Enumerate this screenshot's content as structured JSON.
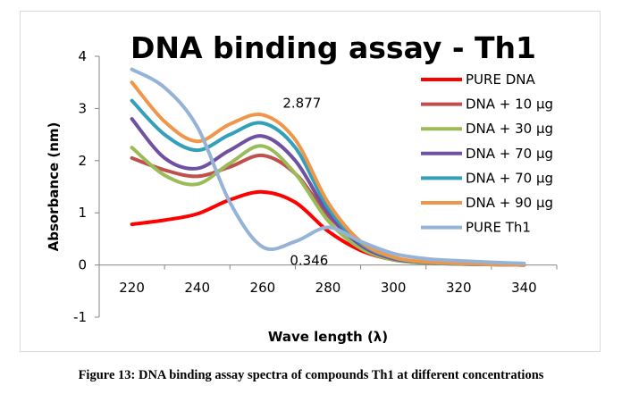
{
  "caption": "Figure 13: DNA binding assay spectra of compounds Th1 at different concentrations",
  "chart_data": {
    "type": "line",
    "title": "DNA binding assay - Th1",
    "xlabel": "Wave length (λ)",
    "ylabel": "Absorbance (nm)",
    "xlim": [
      210,
      350
    ],
    "ylim": [
      -1,
      4
    ],
    "xticks": [
      220,
      240,
      260,
      280,
      300,
      320,
      340
    ],
    "yticks": [
      -1,
      0,
      1,
      2,
      3,
      4
    ],
    "grid": false,
    "legend_position": "right",
    "x": [
      220,
      230,
      240,
      250,
      260,
      270,
      280,
      290,
      300,
      310,
      320,
      330,
      340
    ],
    "series": [
      {
        "name": "PURE DNA",
        "color": "#ff0000",
        "values": [
          0.78,
          0.86,
          0.98,
          1.25,
          1.4,
          1.2,
          0.65,
          0.28,
          0.1,
          0.04,
          0.02,
          0.01,
          0.0
        ]
      },
      {
        "name": "DNA + 10 µg",
        "color": "#c0504d",
        "values": [
          2.05,
          1.82,
          1.7,
          1.88,
          2.1,
          1.75,
          0.95,
          0.4,
          0.13,
          0.05,
          0.02,
          0.01,
          0.0
        ]
      },
      {
        "name": "DNA + 30 µg",
        "color": "#9bbb59",
        "values": [
          2.25,
          1.72,
          1.55,
          1.95,
          2.28,
          1.75,
          0.85,
          0.32,
          0.1,
          0.04,
          0.02,
          0.01,
          0.0
        ]
      },
      {
        "name": "DNA + 70 µg",
        "color": "#7050a0",
        "values": [
          2.8,
          2.05,
          1.85,
          2.2,
          2.47,
          2.0,
          1.0,
          0.38,
          0.12,
          0.05,
          0.02,
          0.01,
          0.0
        ]
      },
      {
        "name": "DNA + 70 µg",
        "color": "#31a0b8",
        "values": [
          3.15,
          2.5,
          2.2,
          2.5,
          2.72,
          2.25,
          1.1,
          0.42,
          0.14,
          0.05,
          0.02,
          0.01,
          0.0
        ]
      },
      {
        "name": "DNA + 90 µg",
        "color": "#f0964b",
        "values": [
          3.5,
          2.75,
          2.37,
          2.7,
          2.877,
          2.4,
          1.2,
          0.45,
          0.15,
          0.06,
          0.03,
          0.01,
          0.0
        ]
      },
      {
        "name": "PURE Th1",
        "color": "#95b3d7",
        "values": [
          3.75,
          3.4,
          2.65,
          1.2,
          0.346,
          0.45,
          0.72,
          0.45,
          0.22,
          0.12,
          0.08,
          0.05,
          0.03
        ]
      }
    ],
    "annotations": [
      {
        "text": "2.877",
        "x": 260,
        "y": 2.877
      },
      {
        "text": "0.346",
        "x": 260,
        "y": 0.346
      }
    ]
  }
}
